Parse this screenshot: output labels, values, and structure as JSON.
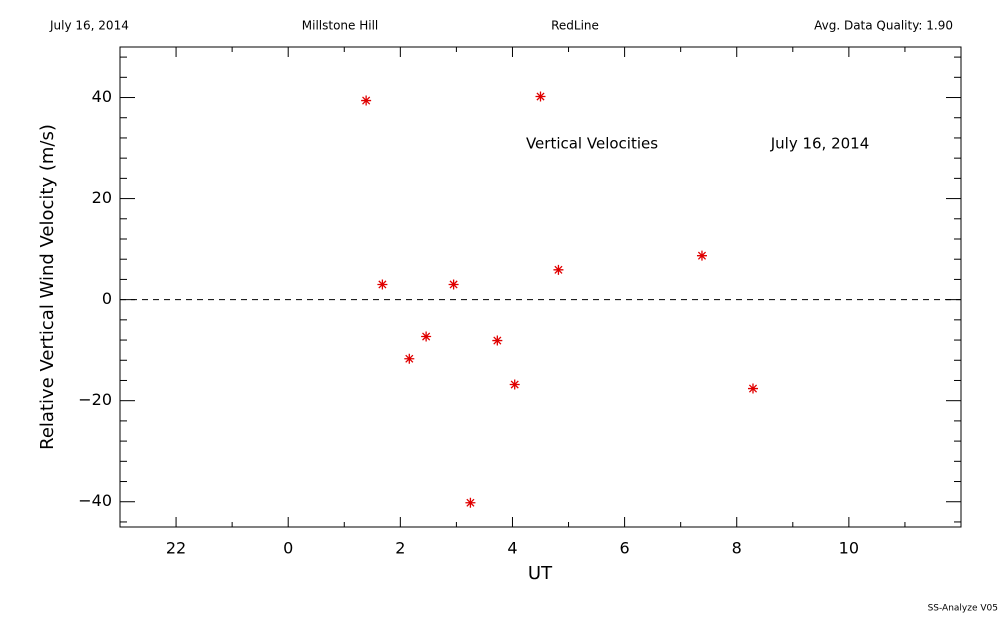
{
  "chart_data": {
    "type": "scatter",
    "header": [
      "July 16, 2014",
      "Millstone Hill",
      "RedLine",
      "Avg. Data Quality: 1.90"
    ],
    "annotations": [
      "Vertical Velocities",
      "July 16, 2014"
    ],
    "footer": "SS-Analyze V05",
    "xlabel": "UT",
    "ylabel": "Relative Vertical Wind Velocity (m/s)",
    "xlim": [
      -3,
      12
    ],
    "ylim": [
      -45,
      50
    ],
    "xticks": [
      {
        "value": -2,
        "label": "22"
      },
      0,
      2,
      4,
      6,
      8,
      10
    ],
    "xminorticks": [
      -1,
      1,
      3,
      5,
      7,
      9,
      11
    ],
    "yticks": [
      {
        "value": -40,
        "label": "−40"
      },
      {
        "value": -20,
        "label": "−20"
      },
      0,
      20,
      40
    ],
    "yminorticks": [
      -44,
      -36,
      -32,
      -28,
      -24,
      -16,
      -12,
      -8,
      -4,
      4,
      8,
      12,
      16,
      24,
      28,
      32,
      36,
      44,
      48
    ],
    "hline": 0,
    "color": "#e00000",
    "x": [
      1.39,
      1.68,
      2.16,
      2.46,
      2.95,
      3.25,
      3.73,
      4.04,
      4.5,
      4.82,
      7.38,
      8.29
    ],
    "values": [
      39.4,
      3.0,
      -11.7,
      -7.3,
      3.0,
      -40.2,
      -8.1,
      -16.8,
      40.2,
      5.9,
      8.7,
      -17.6
    ]
  }
}
